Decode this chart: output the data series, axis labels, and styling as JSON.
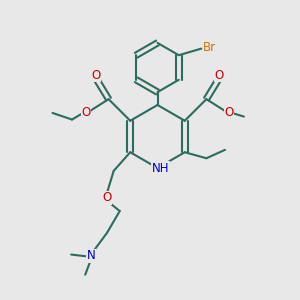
{
  "background_color": "#e8e8e8",
  "bond_color": "#2d6b5e",
  "bond_width": 1.5,
  "atom_colors": {
    "O": "#cc0000",
    "N": "#0000cc",
    "Br": "#cc7700",
    "C": "#2d6b5e"
  },
  "xlim": [
    0,
    10
  ],
  "ylim": [
    0,
    10
  ]
}
